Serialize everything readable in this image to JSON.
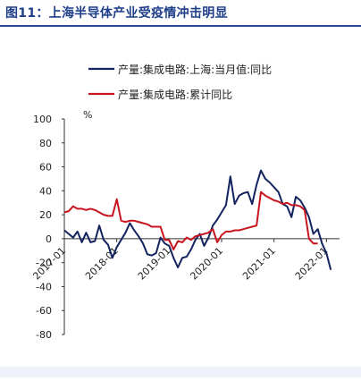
{
  "figure": {
    "title": "图11：上海半导体产业受疫情冲击明显"
  },
  "colors": {
    "title": "#1f3f8a",
    "series1": "#13235f",
    "series2": "#c8141e",
    "axis": "#333333"
  },
  "chart_data": {
    "type": "line",
    "title": "",
    "xlabel": "",
    "ylabel": "%",
    "ylim": [
      -80,
      100
    ],
    "yticks": [
      100,
      80,
      60,
      40,
      20,
      0,
      -20,
      -40,
      -60,
      -80
    ],
    "xticks": [
      {
        "label": "2017-01",
        "index": 0
      },
      {
        "label": "2018-01",
        "index": 12
      },
      {
        "label": "2019-01",
        "index": 24
      },
      {
        "label": "2020-01",
        "index": 36
      },
      {
        "label": "2021-01",
        "index": 48
      },
      {
        "label": "2022-01",
        "index": 60
      }
    ],
    "x_start": "2017-01",
    "x_end": "2022-04",
    "legend_position": "top-center",
    "grid": false,
    "series": [
      {
        "name": "产量:集成电路:上海:当月值:同比",
        "values": [
          7,
          4,
          1,
          6,
          -3,
          5,
          -3,
          -2,
          11,
          -1,
          -5,
          -16,
          -7,
          -1,
          5,
          13,
          7,
          2,
          -4,
          -13,
          -14,
          -12,
          1,
          -4,
          -6,
          -16,
          -24,
          -16,
          -15,
          -9,
          -1,
          4,
          -6,
          1,
          11,
          16,
          22,
          28,
          52,
          29,
          36,
          38,
          39,
          29,
          45,
          57,
          50,
          47,
          43,
          39,
          29,
          27,
          18,
          35,
          32,
          26,
          18,
          4,
          8,
          -4,
          -12,
          -26
        ]
      },
      {
        "name": "产量:集成电路:累计同比",
        "values": [
          22,
          23,
          27,
          25,
          25,
          24,
          25,
          24,
          22,
          20,
          19,
          19,
          33,
          15,
          14,
          15,
          15,
          14,
          13,
          12,
          10,
          10,
          10,
          -1,
          -1,
          -9,
          -2,
          -3,
          1,
          -1,
          2,
          3,
          4,
          5,
          8,
          -3,
          3,
          6,
          6,
          7,
          7,
          8,
          9,
          10,
          11,
          39,
          36,
          34,
          32,
          31,
          29,
          30,
          28,
          28,
          27,
          24,
          0,
          -4,
          -4
        ]
      }
    ]
  }
}
